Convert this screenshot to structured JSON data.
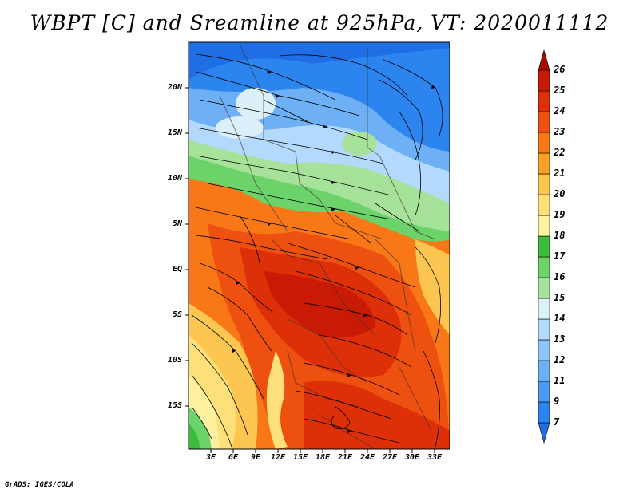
{
  "title": "WBPT [C] and Sreamline at 925hPa, VT: 2020011112",
  "lat_labels": [
    "20N",
    "15N",
    "10N",
    "5N",
    "EQ",
    "5S",
    "10S",
    "15S"
  ],
  "lon_labels": [
    "3E",
    "6E",
    "9E",
    "12E",
    "15E",
    "18E",
    "21E",
    "24E",
    "27E",
    "30E",
    "33E"
  ],
  "colorbar": {
    "levels": [
      "7",
      "9",
      "11",
      "12",
      "13",
      "14",
      "15",
      "16",
      "17",
      "18",
      "19",
      "20",
      "21",
      "22",
      "23",
      "24",
      "25",
      "26"
    ],
    "colors": [
      "#1e6ee6",
      "#2c84ee",
      "#4a9af2",
      "#6db0f6",
      "#8fc6fa",
      "#b3dafc",
      "#dcf0fa",
      "#a6e29a",
      "#6cd26a",
      "#3cbc3c",
      "#fff1a0",
      "#fde07a",
      "#fcc650",
      "#faa028",
      "#f87818",
      "#ee5010",
      "#dd3008",
      "#c81a04",
      "#a60a02"
    ]
  },
  "credit": "GrADS: IGES/COLA"
}
